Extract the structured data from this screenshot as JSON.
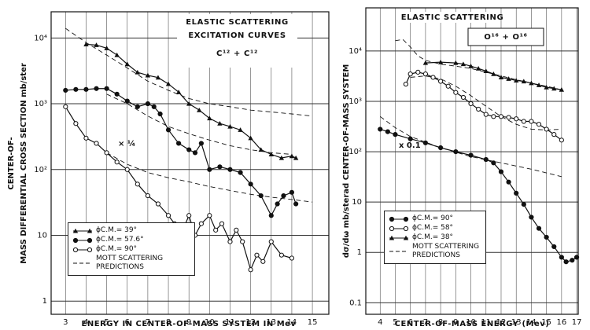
{
  "chart_data": [
    {
      "type": "line",
      "yscale": "log",
      "grid": true,
      "legend": "lower left",
      "color": "#111111",
      "title": "ELASTIC SCATTERING",
      "subtitle": "EXCITATION CURVES",
      "reaction": "C¹² + C¹²",
      "xlabel": "ENERGY IN CENTER-OF-MASS SYSTEM IN Mev",
      "ylabel": [
        "CENTER-OF-",
        "MASS DIFFERENTIAL CROSS SECTION  mb/ster"
      ],
      "annotations": [
        "× ¼"
      ],
      "xlim": [
        2.3,
        15.8
      ],
      "xticks": [
        3,
        4,
        5,
        6,
        7,
        8,
        9,
        10,
        11,
        12,
        13,
        14,
        15
      ],
      "ylim": [
        0.63,
        25000
      ],
      "yticks": [
        1,
        10,
        {
          "value": 100,
          "label": "10²"
        },
        {
          "value": 1000,
          "label": "10³"
        },
        {
          "value": 10000,
          "label": "10⁴"
        }
      ],
      "series": [
        {
          "name": "ϕC.M.= 39°",
          "marker": "triangle",
          "x": [
            4,
            4.5,
            5,
            5.5,
            6,
            6.5,
            7,
            7.5,
            8,
            8.5,
            9,
            9.5,
            10,
            10.5,
            11,
            11.5,
            12,
            12.5,
            13,
            13.5,
            14,
            14.2
          ],
          "values": [
            8000,
            7800,
            7000,
            5500,
            4000,
            3000,
            2700,
            2500,
            2000,
            1500,
            1000,
            800,
            600,
            500,
            450,
            400,
            300,
            200,
            170,
            150,
            160,
            150
          ]
        },
        {
          "name": "ϕC.M.= 57.6°",
          "marker": "filled",
          "x": [
            3,
            3.5,
            4,
            4.5,
            5,
            5.5,
            6,
            6.5,
            7,
            7.3,
            7.6,
            8,
            8.5,
            9,
            9.3,
            9.6,
            10,
            10.5,
            11,
            11.5,
            12,
            12.5,
            13,
            13.3,
            13.6,
            14,
            14.2
          ],
          "values": [
            1600,
            1650,
            1650,
            1700,
            1700,
            1400,
            1100,
            900,
            1000,
            900,
            700,
            400,
            250,
            200,
            180,
            250,
            100,
            110,
            100,
            90,
            60,
            40,
            20,
            30,
            40,
            45,
            30
          ]
        },
        {
          "name": "ϕC.M.= 90°",
          "marker": "open",
          "x": [
            3,
            3.5,
            4,
            4.5,
            5,
            5.5,
            6,
            6.5,
            7,
            7.5,
            8,
            8.3,
            8.7,
            9,
            9.3,
            9.6,
            10,
            10.3,
            10.6,
            11,
            11.3,
            11.6,
            12,
            12.3,
            12.6,
            13,
            13.5,
            14
          ],
          "values": [
            900,
            500,
            300,
            250,
            180,
            130,
            100,
            60,
            40,
            30,
            20,
            15,
            12,
            20,
            10,
            15,
            20,
            12,
            15,
            8,
            12,
            8,
            3,
            5,
            4,
            8,
            5,
            4.5
          ]
        }
      ],
      "reference": {
        "name": "MOTT SCATTERING PREDICTIONS",
        "curves": [
          {
            "x": [
              3,
              4,
              5,
              6,
              7,
              8,
              9,
              10,
              11,
              12,
              13,
              14,
              15
            ],
            "values": [
              14000,
              8500,
              5500,
              3500,
              2200,
              1600,
              1200,
              1000,
              900,
              800,
              750,
              700,
              650
            ]
          },
          {
            "x": [
              5,
              6,
              7,
              8,
              9,
              10,
              11,
              12,
              13,
              14
            ],
            "values": [
              1400,
              1000,
              650,
              450,
              350,
              280,
              230,
              200,
              180,
              170
            ]
          },
          {
            "x": [
              5,
              6,
              7,
              8,
              9,
              10,
              11,
              12,
              13,
              14,
              15
            ],
            "values": [
              180,
              120,
              90,
              75,
              65,
              55,
              48,
              42,
              38,
              35,
              32
            ]
          }
        ]
      }
    },
    {
      "type": "line",
      "yscale": "log",
      "grid": true,
      "legend": "lower left",
      "color": "#111111",
      "title": "ELASTIC SCATTERING",
      "reaction": "O¹⁶ + O¹⁶",
      "xlabel": "CENTER-OF-MASS ENERGY (Mev)",
      "ylabel": [
        "dσ/dω  mb/sterad CENTER-OF-MASS SYSTEM"
      ],
      "annotations": [
        "x 0.1"
      ],
      "xlim": [
        3.05,
        17.1
      ],
      "xticks": [
        4,
        5,
        6,
        7,
        8,
        9,
        10,
        11,
        12,
        13,
        14,
        15,
        16,
        17
      ],
      "ylim": [
        0.059,
        72000
      ],
      "yticks": [
        0.1,
        1,
        10,
        {
          "value": 100,
          "label": "10²"
        },
        {
          "value": 1000,
          "label": "10³"
        },
        {
          "value": 10000,
          "label": "10⁴"
        }
      ],
      "series": [
        {
          "name": "ϕC.M.= 90°",
          "marker": "filled",
          "x": [
            4,
            4.5,
            5,
            6,
            7,
            8,
            9,
            10,
            11,
            11.5,
            12,
            12.5,
            13,
            13.5,
            14,
            14.5,
            15,
            15.5,
            16,
            16.3,
            16.7,
            17
          ],
          "values": [
            280,
            250,
            220,
            180,
            150,
            120,
            100,
            85,
            70,
            60,
            40,
            25,
            15,
            9,
            5,
            3,
            2,
            1.3,
            0.8,
            0.65,
            0.7,
            0.8
          ]
        },
        {
          "name": "ϕC.M.= 58°",
          "marker": "open",
          "x": [
            5.7,
            6,
            6.5,
            7,
            7.5,
            8,
            8.5,
            9,
            9.5,
            10,
            10.5,
            11,
            11.5,
            12,
            12.5,
            13,
            13.5,
            14,
            14.5,
            15,
            15.5,
            16
          ],
          "values": [
            2200,
            3500,
            3800,
            3500,
            3000,
            2500,
            2000,
            1500,
            1200,
            900,
            700,
            550,
            500,
            500,
            480,
            450,
            400,
            400,
            350,
            280,
            220,
            170
          ]
        },
        {
          "name": "ϕC.M.= 38°",
          "marker": "triangle",
          "x": [
            7,
            8,
            9,
            9.5,
            10,
            10.5,
            11,
            11.5,
            12,
            12.5,
            13,
            13.5,
            14,
            14.5,
            15,
            15.5,
            16
          ],
          "values": [
            5800,
            6000,
            5800,
            5500,
            5000,
            4500,
            4000,
            3500,
            3000,
            2800,
            2600,
            2500,
            2300,
            2100,
            1900,
            1800,
            1700
          ]
        }
      ],
      "reference": {
        "name": "MOTT SCATTERING PREDICTIONS",
        "curves": [
          {
            "x": [
              5,
              5.5,
              6,
              6.5,
              7,
              8,
              9,
              10,
              11,
              12,
              13,
              14,
              15,
              16
            ],
            "values": [
              16000,
              17000,
              12000,
              8000,
              6500,
              5500,
              5000,
              4500,
              3800,
              3200,
              2700,
              2300,
              2000,
              1700
            ]
          },
          {
            "x": [
              6,
              7,
              8,
              9,
              10,
              11,
              12,
              13,
              14,
              15,
              16
            ],
            "values": [
              3000,
              3200,
              2800,
              2000,
              1300,
              800,
              500,
              350,
              280,
              270,
              280
            ]
          },
          {
            "x": [
              4,
              5,
              6,
              8,
              10,
              12,
              14,
              16
            ],
            "values": [
              500,
              300,
              200,
              120,
              80,
              60,
              45,
              32
            ]
          }
        ]
      }
    }
  ]
}
